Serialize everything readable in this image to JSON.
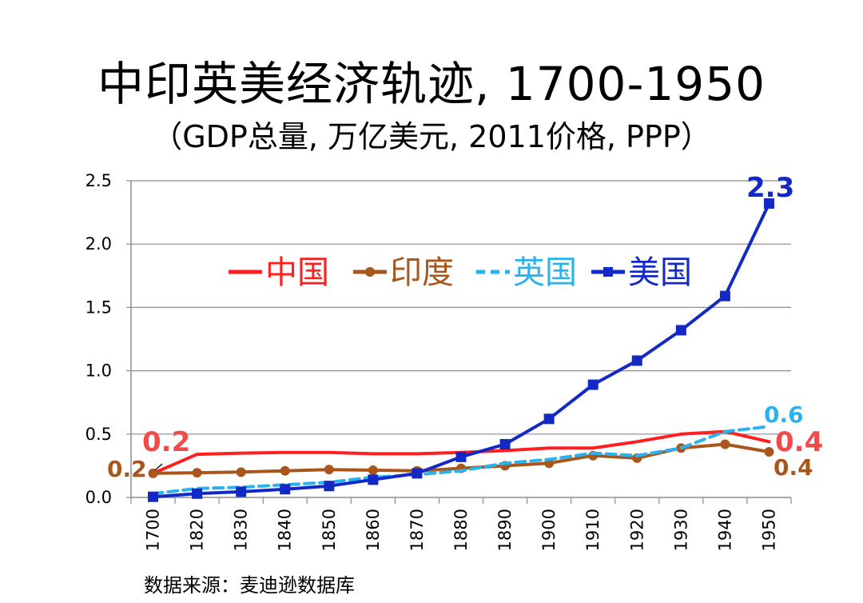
{
  "title": "中印英美经济轨迹, 1700-1950",
  "subtitle": "（GDP总量, 万亿美元, 2011价格, PPP）",
  "source": "数据来源：麦迪逊数据库",
  "chart_data": {
    "type": "line",
    "categories": [
      "1700",
      "1820",
      "1830",
      "1840",
      "1850",
      "1860",
      "1870",
      "1880",
      "1890",
      "1900",
      "1910",
      "1920",
      "1930",
      "1940",
      "1950"
    ],
    "ylim": [
      0,
      2.5
    ],
    "yticks": [
      "0.0",
      "0.5",
      "1.0",
      "1.5",
      "2.0",
      "2.5"
    ],
    "grid": true,
    "legend_position": "top-left",
    "series": [
      {
        "name": "中国",
        "color": "#ff1f1f",
        "style": "solid",
        "marker": "none",
        "values": [
          0.19,
          0.34,
          0.35,
          0.355,
          0.355,
          0.345,
          0.345,
          0.355,
          0.37,
          0.39,
          0.39,
          0.44,
          0.5,
          0.52,
          0.44
        ]
      },
      {
        "name": "印度",
        "color": "#a9561c",
        "style": "solid",
        "marker": "circle",
        "values": [
          0.19,
          0.195,
          0.2,
          0.21,
          0.22,
          0.215,
          0.21,
          0.23,
          0.25,
          0.27,
          0.33,
          0.31,
          0.39,
          0.42,
          0.36
        ]
      },
      {
        "name": "英国",
        "color": "#29b3ee",
        "style": "dashed",
        "marker": "none",
        "values": [
          0.03,
          0.07,
          0.08,
          0.1,
          0.12,
          0.16,
          0.18,
          0.21,
          0.27,
          0.3,
          0.35,
          0.33,
          0.39,
          0.52,
          0.56
        ]
      },
      {
        "name": "美国",
        "color": "#1229c8",
        "style": "solid",
        "marker": "square",
        "values": [
          0.005,
          0.03,
          0.045,
          0.065,
          0.09,
          0.14,
          0.19,
          0.32,
          0.42,
          0.62,
          0.89,
          1.08,
          1.32,
          1.59,
          2.32
        ]
      }
    ],
    "annotations": [
      {
        "text": "0.2",
        "series": "中国",
        "at": "start",
        "color": "#f24b4b"
      },
      {
        "text": "0.2",
        "series": "印度",
        "at": "start",
        "color": "#a9561c"
      },
      {
        "text": "2.3",
        "series": "美国",
        "at": "end",
        "color": "#1229c8"
      },
      {
        "text": "0.6",
        "series": "英国",
        "at": "end",
        "color": "#29b3ee"
      },
      {
        "text": "0.4",
        "series": "中国",
        "at": "end",
        "color": "#f24b4b"
      },
      {
        "text": "0.4",
        "series": "印度",
        "at": "end",
        "color": "#a9561c"
      }
    ]
  }
}
